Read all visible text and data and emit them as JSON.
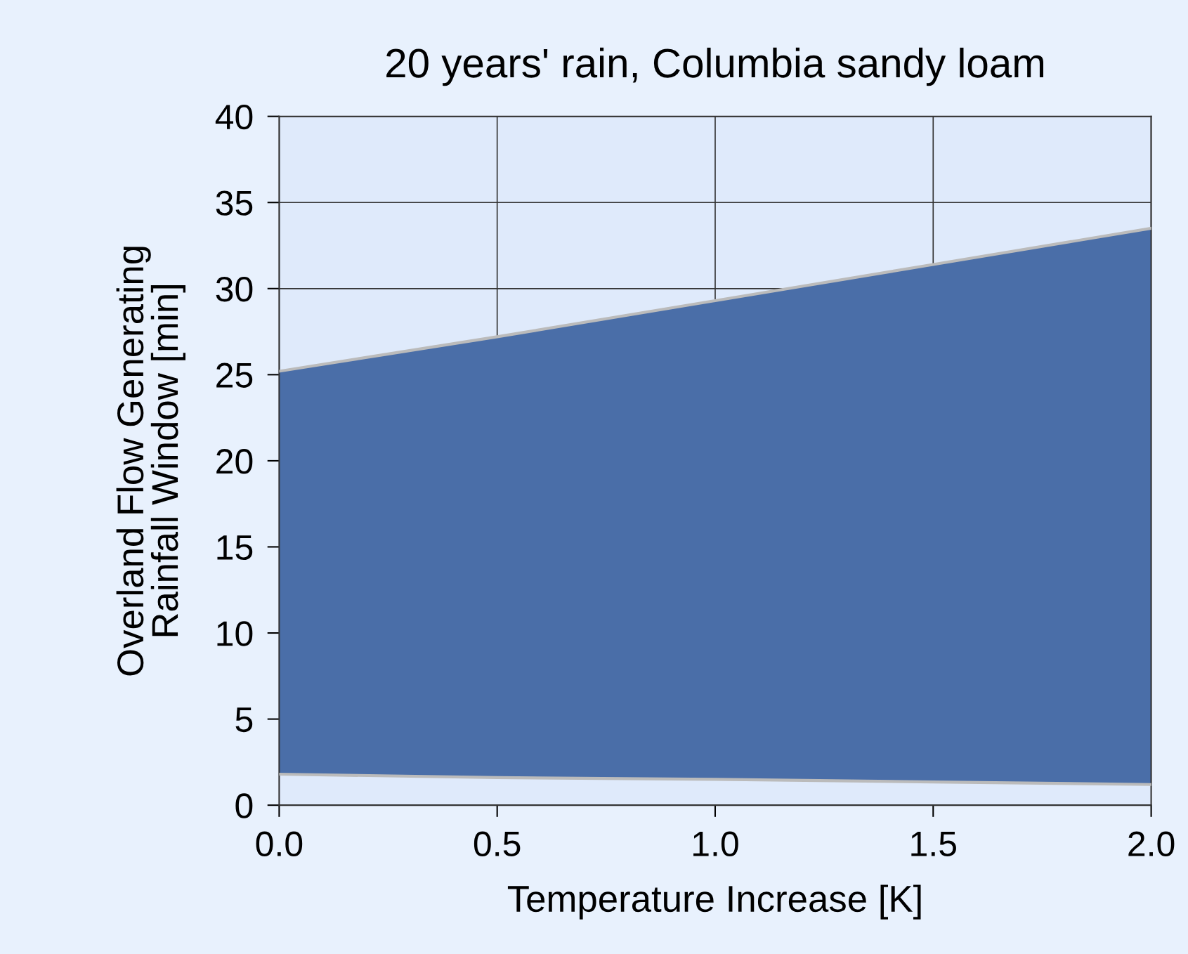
{
  "chart_data": {
    "type": "area",
    "title": "20 years' rain, Columbia sandy loam",
    "xlabel": "Temperature Increase [K]",
    "ylabel": "Overland Flow Generating\nRainfall Window [min]",
    "x": [
      0,
      0.5,
      1.0,
      1.5,
      2.0
    ],
    "stacked": true,
    "series": [
      {
        "color": "#dfeafb",
        "values": [
          1.8,
          1.6,
          1.5,
          1.35,
          1.2
        ]
      },
      {
        "color": "#4a6ea8",
        "values": [
          23.4,
          25.6,
          27.8,
          30.05,
          32.3
        ]
      }
    ],
    "xlim": [
      0,
      2
    ],
    "xticks": [
      {
        "value": 0,
        "label": "0.0"
      },
      {
        "value": 0.5,
        "label": "0.5"
      },
      {
        "value": 1,
        "label": "1.0"
      },
      {
        "value": 1.5,
        "label": "1.5"
      },
      {
        "value": 2,
        "label": "2.0"
      }
    ],
    "ylim": [
      0,
      40
    ],
    "yticks": [
      0,
      5,
      10,
      15,
      20,
      25,
      30,
      35,
      40
    ],
    "grid": true
  }
}
